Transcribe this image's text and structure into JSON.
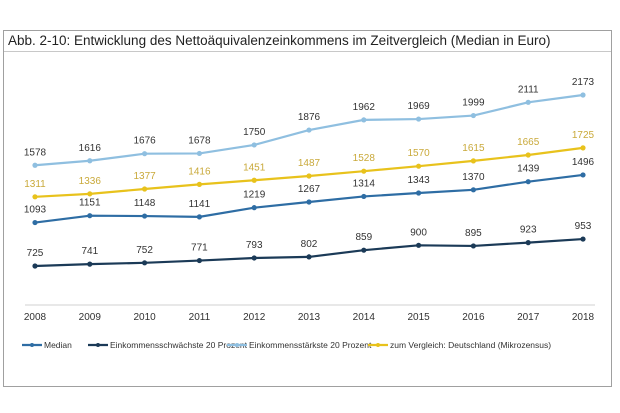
{
  "chart_data": {
    "type": "line",
    "title": "Abb. 2-10: Entwicklung des Nettoäquivalenzeinkommens im Zeitvergleich (Median in Euro)",
    "x": [
      "2008",
      "2009",
      "2010",
      "2011",
      "2012",
      "2013",
      "2014",
      "2015",
      "2016",
      "2017",
      "2018"
    ],
    "series": [
      {
        "name": "Median",
        "color": "#2e6da4",
        "values": [
          1093,
          1151,
          1148,
          1141,
          1219,
          1267,
          1314,
          1343,
          1370,
          1439,
          1496
        ]
      },
      {
        "name": "Einkommensschwächste 20 Prozent",
        "color": "#1b3a57",
        "values": [
          725,
          741,
          752,
          771,
          793,
          802,
          859,
          900,
          895,
          923,
          953
        ]
      },
      {
        "name": "Einkommensstärkste 20 Prozent",
        "color": "#8fbfe0",
        "values": [
          1578,
          1616,
          1676,
          1678,
          1750,
          1876,
          1962,
          1969,
          1999,
          2111,
          2173
        ]
      },
      {
        "name": "zum Vergleich: Deutschland (Mikrozensus)",
        "color": "#e8c21c",
        "label_color": "#c9a93a",
        "values": [
          1311,
          1336,
          1377,
          1416,
          1451,
          1487,
          1528,
          1570,
          1615,
          1665,
          1725
        ]
      }
    ],
    "data_labels": true,
    "grid": false,
    "legend": "bottom"
  }
}
